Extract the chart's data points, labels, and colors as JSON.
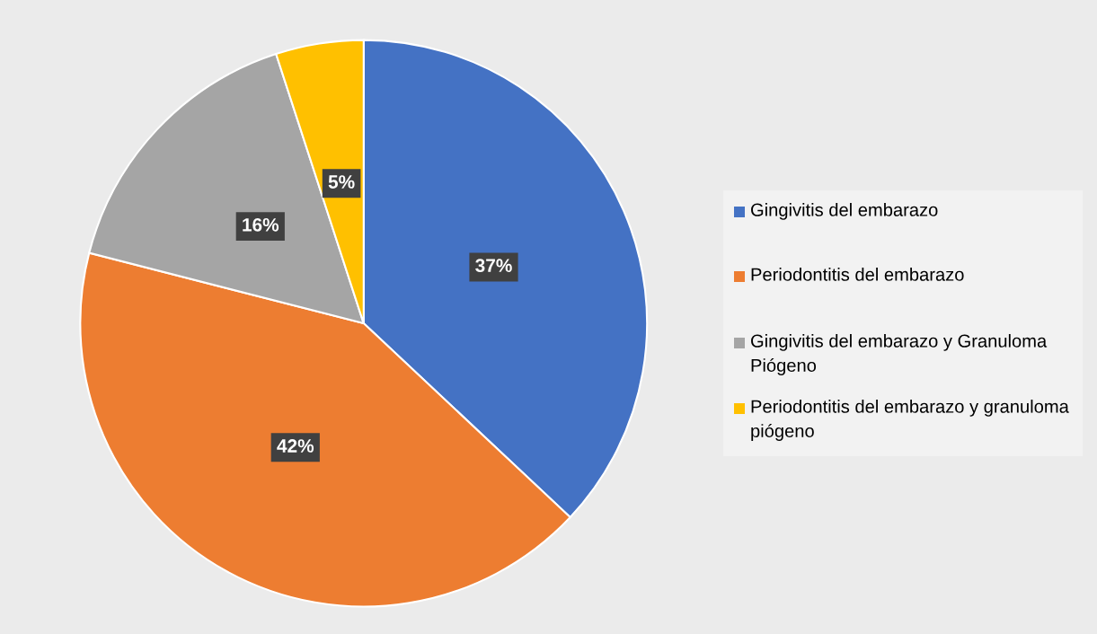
{
  "chart_data": {
    "type": "pie",
    "categories": [
      "Gingivitis del embarazo",
      "Periodontitis del embarazo",
      "Gingivitis del embarazo y Granuloma Piógeno",
      "Periodontitis del embarazo y granuloma piógeno"
    ],
    "values": [
      37,
      42,
      16,
      5
    ],
    "colors": [
      "#4472c4",
      "#ed7d31",
      "#a5a5a5",
      "#ffc000"
    ],
    "value_labels": [
      "37%",
      "42%",
      "16%",
      "5%"
    ],
    "legend": "right"
  }
}
